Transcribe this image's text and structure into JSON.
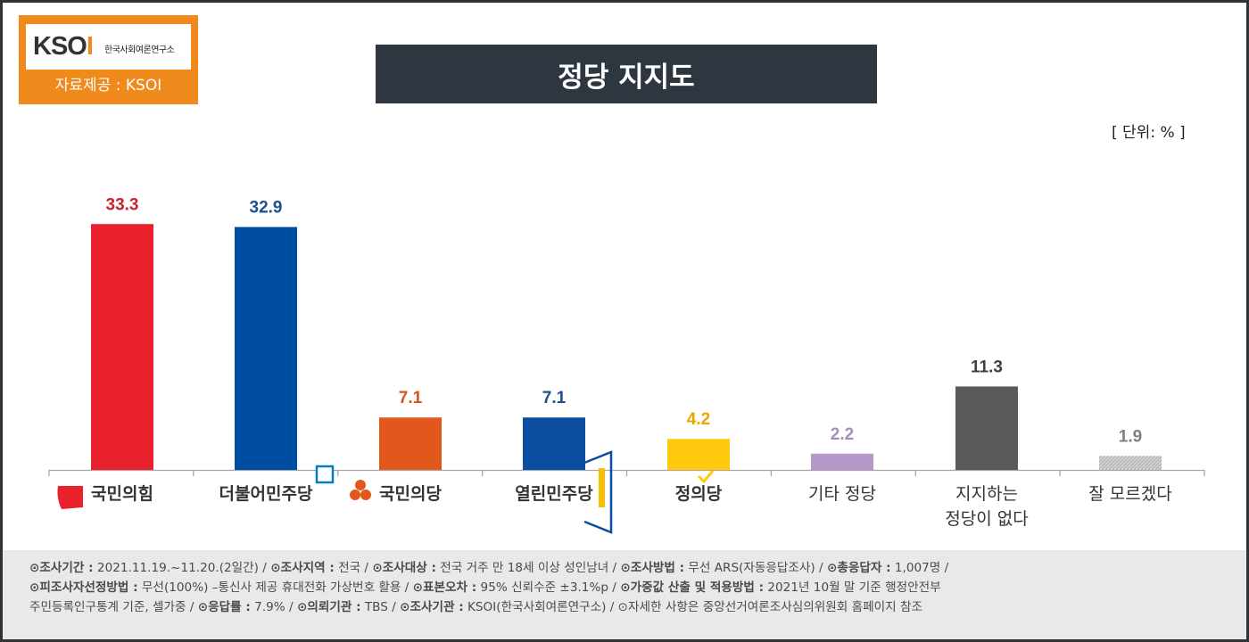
{
  "logo": {
    "mark_main": "KSO",
    "mark_accent": "I",
    "org_name": "한국사회여론연구소",
    "source_label": "자료제공 : KSOI"
  },
  "title": "정당 지지도",
  "unit_label": "[ 단위: % ]",
  "colors": {
    "국민의힘": "#e8212c",
    "더불어민주당": "#004ea2",
    "국민의당": "#e2571b",
    "열린민주당": "#0b4da1",
    "정의당": "#ffc90e",
    "기타 정당": "#b39ac8",
    "지지하는 정당이 없다": "#595959",
    "잘 모르겠다": "#c8c8c8"
  },
  "chart_data": {
    "type": "bar",
    "categories": [
      "국민의힘",
      "더불어민주당",
      "국민의당",
      "열린민주당",
      "정의당",
      "기타 정당",
      "지지하는 정당이 없다",
      "잘 모르겠다"
    ],
    "category_display": [
      [
        "국민의힘"
      ],
      [
        "더불어민주당"
      ],
      [
        "국민의당"
      ],
      [
        "열린민주당"
      ],
      [
        "정의당"
      ],
      [
        "기타 정당"
      ],
      [
        "지지하는",
        "정당이 없다"
      ],
      [
        "잘 모르겠다"
      ]
    ],
    "values": [
      33.3,
      32.9,
      7.1,
      7.1,
      4.2,
      2.2,
      11.3,
      1.9
    ],
    "value_labels": [
      "33.3",
      "32.9",
      "7.1",
      "7.1",
      "4.2",
      "2.2",
      "11.3",
      "1.9"
    ],
    "label_colors": [
      "#c8232c",
      "#1f4e8c",
      "#d9531e",
      "#1f4e8c",
      "#e8a800",
      "#a58ebf",
      "#404040",
      "#7f7f7f"
    ],
    "logo_categories": [
      "국민의힘",
      "더불어민주당",
      "국민의당",
      "열린민주당",
      "정의당"
    ],
    "title": "정당 지지도",
    "unit": "%",
    "ylim": [
      0,
      35
    ],
    "grid": false,
    "legend": "none"
  },
  "footer": {
    "lines": [
      [
        {
          "k": "⊙조사기간 :",
          "v": " 2021.11.19.~11.20.(2일간)  / "
        },
        {
          "k": "⊙조사지역 :",
          "v": " 전국 / "
        },
        {
          "k": "⊙조사대상 :",
          "v": " 전국 거주 만 18세 이상 성인남녀 / "
        },
        {
          "k": "⊙조사방법 :",
          "v": " 무선 ARS(자동응답조사) / "
        },
        {
          "k": "⊙총응답자 :",
          "v": " 1,007명 /"
        }
      ],
      [
        {
          "k": "⊙피조사자선정방법 :",
          "v": " 무선(100%) –통신사 제공 휴대전화 가상번호 활용 / "
        },
        {
          "k": "⊙표본오차 :",
          "v": " 95% 신뢰수준 ±3.1%p / "
        },
        {
          "k": "⊙가중값 산출 및 적용방법 :",
          "v": " 2021년 10월 말 기준 행정안전부"
        }
      ],
      [
        {
          "k": "",
          "v": "주민등록인구통계 기준, 셀가중 / "
        },
        {
          "k": "⊙응답률 :",
          "v": " 7.9% / "
        },
        {
          "k": "⊙의뢰기관 :",
          "v": " TBS / "
        },
        {
          "k": "⊙조사기관 :",
          "v": " KSOI(한국사회여론연구소) / "
        },
        {
          "k": "",
          "v": "⊙자세한 사항은 중앙선거여론조사심의위원회 홈페이지 참조"
        }
      ]
    ]
  }
}
